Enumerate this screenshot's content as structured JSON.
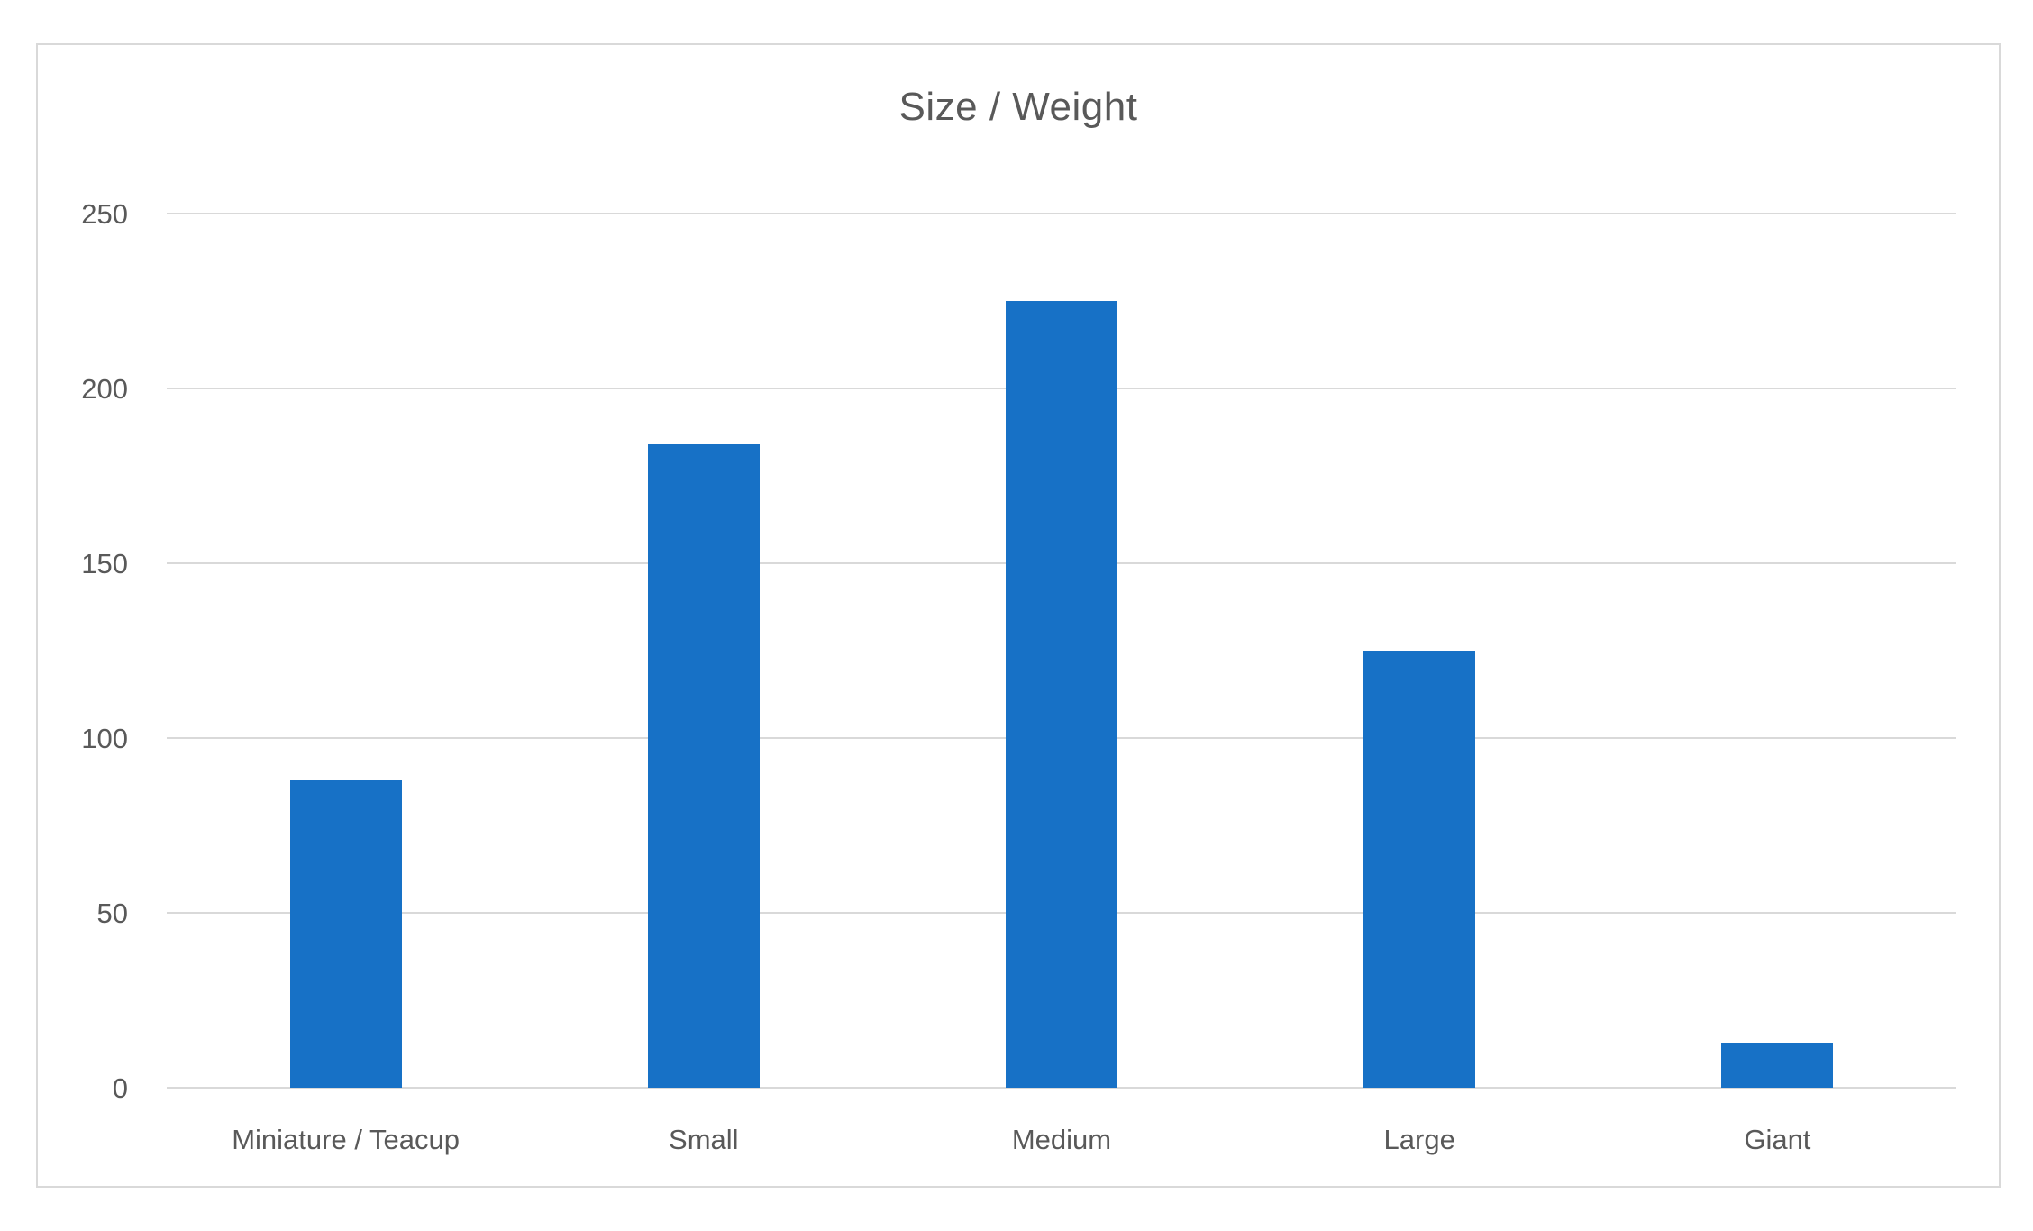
{
  "chart": {
    "colors": {
      "bar": "#1771c6",
      "gridline": "#d9d9d9",
      "frame_border": "#d9d9d9",
      "text": "#595959",
      "background": "#ffffff"
    }
  },
  "chart_data": {
    "type": "bar",
    "title": "Size / Weight",
    "categories": [
      "Miniature / Teacup",
      "Small",
      "Medium",
      "Large",
      "Giant"
    ],
    "values": [
      88,
      184,
      225,
      125,
      13
    ],
    "xlabel": "",
    "ylabel": "",
    "ylim": [
      0,
      250
    ],
    "yticks": [
      0,
      50,
      100,
      150,
      200,
      250
    ],
    "grid": true,
    "legend": false,
    "series_name": "",
    "bar_color": "#1771c6"
  }
}
